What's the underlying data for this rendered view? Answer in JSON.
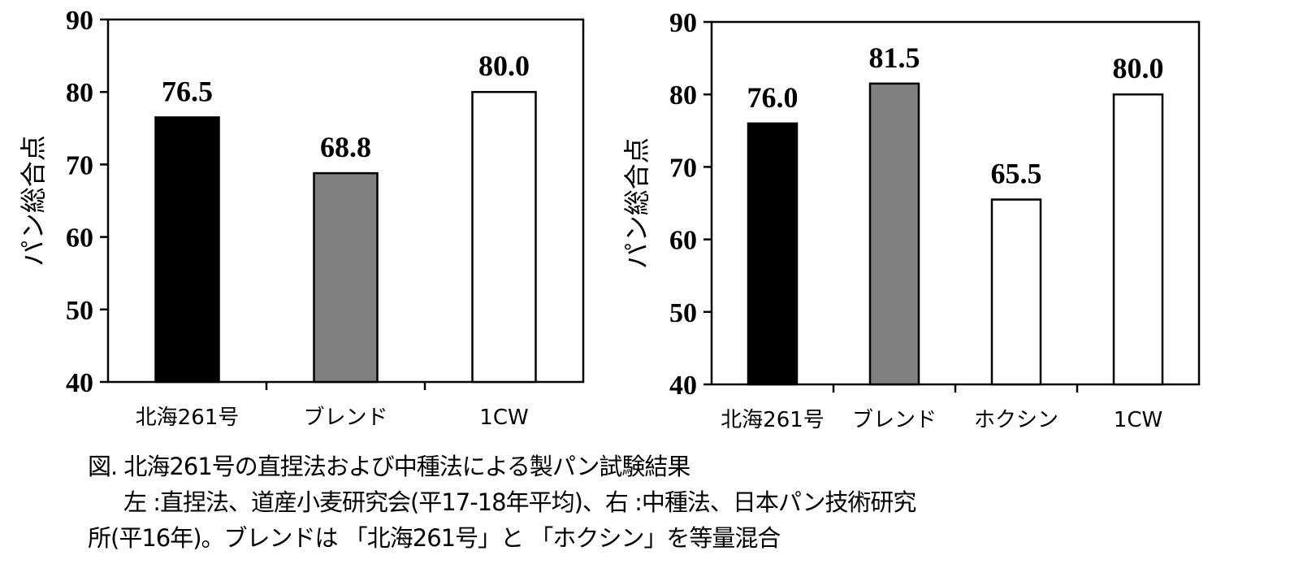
{
  "chart_data": [
    {
      "type": "bar",
      "ylabel": "パン総合点",
      "ylim": [
        40,
        90
      ],
      "yticks": [
        40,
        50,
        60,
        70,
        80,
        90
      ],
      "grid": false,
      "categories": [
        "北海261号",
        "ブレンド",
        "1CW"
      ],
      "values": [
        76.5,
        68.8,
        80.0
      ],
      "value_labels": [
        "76.5",
        "68.8",
        "80.0"
      ],
      "bar_colors": [
        "#000000",
        "#808080",
        "#ffffff"
      ]
    },
    {
      "type": "bar",
      "ylabel": "パン総合点",
      "ylim": [
        40,
        90
      ],
      "yticks": [
        40,
        50,
        60,
        70,
        80,
        90
      ],
      "grid": false,
      "categories": [
        "北海261号",
        "ブレンド",
        "ホクシン",
        "1CW"
      ],
      "values": [
        76.0,
        81.5,
        65.5,
        80.0
      ],
      "value_labels": [
        "76.0",
        "81.5",
        "65.5",
        "80.0"
      ],
      "bar_colors": [
        "#000000",
        "#808080",
        "#ffffff",
        "#ffffff"
      ]
    }
  ],
  "caption": {
    "line1": "図. 北海261号の直捏法および中種法による製パン試験結果",
    "line2": "左 :直捏法、道産小麦研究会(平17-18年平均)、右 :中種法、日本パン技術研究",
    "line3": "所(平16年)。ブレンドは 「北海261号」と 「ホクシン」を等量混合"
  }
}
